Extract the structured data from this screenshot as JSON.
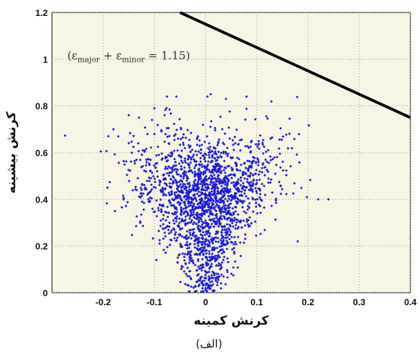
{
  "chart_data": {
    "type": "scatter",
    "xlabel": "کرنش کمینه",
    "ylabel": "کرنش بیشینه",
    "xlim": [
      -0.3,
      0.4
    ],
    "ylim": [
      0,
      1.2
    ],
    "xticks": [
      "-0.2",
      "-0.1",
      "0",
      "0.1",
      "0.2",
      "0.3",
      "0.4"
    ],
    "yticks": [
      "0",
      "0.2",
      "0.4",
      "0.6",
      "0.8",
      "1",
      "1.2"
    ],
    "grid": true,
    "background": "#f8f5e4",
    "point_color": "#1a1adb",
    "line_color": "#000000",
    "point_count": 2000,
    "line": {
      "x": [
        -0.05,
        0.4
      ],
      "y": [
        1.2,
        0.75
      ]
    },
    "points_sample": [
      {
        "x": -0.19,
        "y": 0.67
      },
      {
        "x": -0.18,
        "y": 0.7
      },
      {
        "x": -0.15,
        "y": 0.76
      },
      {
        "x": -0.16,
        "y": 0.4
      },
      {
        "x": -0.13,
        "y": 0.75
      },
      {
        "x": -0.1,
        "y": 0.79
      },
      {
        "x": -0.08,
        "y": 0.76
      },
      {
        "x": 0.01,
        "y": 0.85
      },
      {
        "x": 0.04,
        "y": 0.83
      },
      {
        "x": 0.08,
        "y": 0.84
      },
      {
        "x": 0.18,
        "y": 0.22
      },
      {
        "x": 0.22,
        "y": 0.4
      },
      {
        "x": 0.24,
        "y": 0.4
      },
      {
        "x": 0.0,
        "y": 0.02
      },
      {
        "x": 0.0,
        "y": 0.45
      }
    ],
    "annotation": {
      "text_parts": [
        "(ε",
        "major",
        " + ε",
        "minor",
        " = 1.15)"
      ]
    }
  },
  "caption": "(الف)"
}
